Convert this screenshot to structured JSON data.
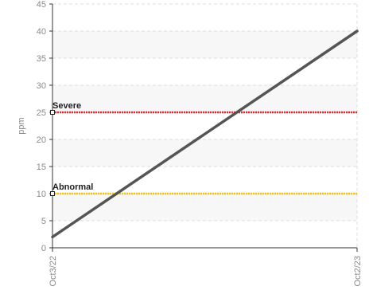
{
  "chart_data": {
    "type": "line",
    "ylabel": "ppm",
    "ylim": [
      0,
      45
    ],
    "y_ticks": [
      0,
      5,
      10,
      15,
      20,
      25,
      30,
      35,
      40,
      45
    ],
    "x_ticks": [
      "Oct3/22",
      "Oct2/23"
    ],
    "grid": true,
    "series": [
      {
        "x": [
          "Oct3/22",
          "Oct2/23"
        ],
        "values": [
          2,
          40
        ],
        "color": "#555555"
      }
    ],
    "thresholds": [
      {
        "label": "Severe",
        "value": 25,
        "color": "#e8232a"
      },
      {
        "label": "Abnormal",
        "value": 10,
        "color": "#f2c40f"
      }
    ]
  }
}
